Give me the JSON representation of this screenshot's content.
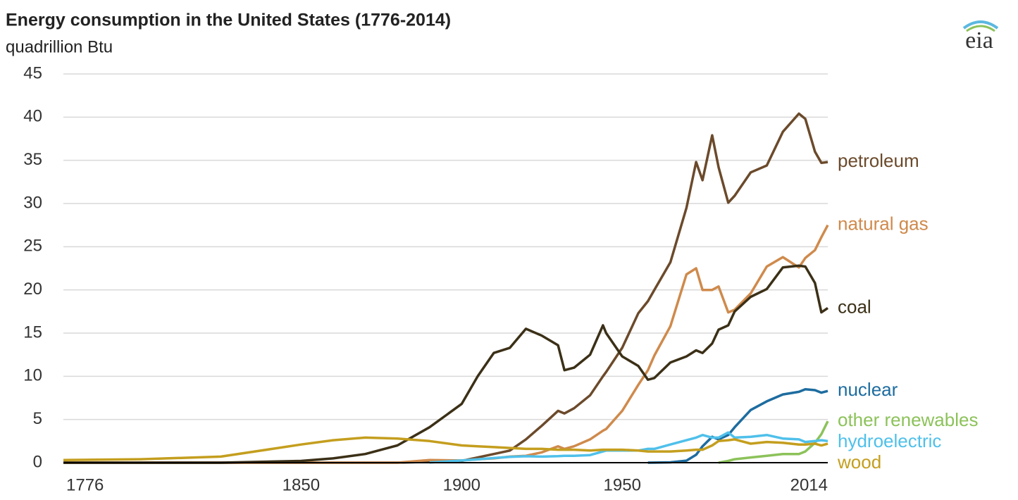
{
  "chart_data": {
    "type": "line",
    "title": "Energy consumption in the United States (1776-2014)",
    "subtitle": "quadrillion Btu",
    "logo": "eia",
    "x": [
      1776,
      1800,
      1825,
      1850,
      1860,
      1870,
      1880,
      1890,
      1900,
      1905,
      1910,
      1915,
      1920,
      1925,
      1930,
      1932,
      1935,
      1940,
      1944,
      1945,
      1950,
      1955,
      1958,
      1960,
      1965,
      1970,
      1973,
      1975,
      1978,
      1980,
      1983,
      1985,
      1990,
      1995,
      2000,
      2005,
      2007,
      2010,
      2012,
      2014
    ],
    "xlim": [
      1776,
      2014
    ],
    "xticks": [
      1776,
      1850,
      1900,
      1950,
      2014
    ],
    "ylim": [
      0,
      45
    ],
    "yticks": [
      0,
      5,
      10,
      15,
      20,
      25,
      30,
      35,
      40,
      45
    ],
    "grid": true,
    "series": [
      {
        "name": "petroleum",
        "color": "#6b4a2b",
        "values": [
          0,
          0,
          0,
          0,
          0,
          0,
          0,
          0.1,
          0.2,
          0.6,
          1.0,
          1.4,
          2.7,
          4.3,
          6.0,
          5.7,
          6.3,
          7.8,
          10.0,
          10.5,
          13.3,
          17.3,
          18.7,
          20.0,
          23.2,
          29.5,
          34.8,
          32.7,
          37.9,
          34.2,
          30.1,
          30.9,
          33.6,
          34.4,
          38.3,
          40.4,
          39.8,
          36.0,
          34.7,
          34.8
        ]
      },
      {
        "name": "natural gas",
        "color": "#cf8a4c",
        "values": [
          0,
          0,
          0,
          0,
          0,
          0,
          0,
          0.3,
          0.25,
          0.4,
          0.5,
          0.7,
          0.8,
          1.2,
          1.9,
          1.6,
          1.9,
          2.7,
          3.7,
          3.9,
          6.0,
          9.0,
          10.7,
          12.4,
          15.8,
          21.8,
          22.5,
          20.0,
          20.0,
          20.4,
          17.4,
          17.7,
          19.6,
          22.7,
          23.8,
          22.6,
          23.7,
          24.6,
          26.1,
          27.5
        ]
      },
      {
        "name": "coal",
        "color": "#3b3017",
        "values": [
          0,
          0,
          0,
          0.2,
          0.5,
          1.0,
          2.0,
          4.1,
          6.8,
          10.0,
          12.7,
          13.3,
          15.5,
          14.7,
          13.6,
          10.7,
          11.0,
          12.5,
          15.9,
          15.0,
          12.3,
          11.2,
          9.6,
          9.8,
          11.6,
          12.3,
          13.0,
          12.7,
          13.8,
          15.4,
          15.9,
          17.5,
          19.2,
          20.1,
          22.6,
          22.8,
          22.7,
          20.8,
          17.4,
          17.9
        ]
      },
      {
        "name": "nuclear",
        "color": "#1d6c9f",
        "values": [
          null,
          null,
          null,
          null,
          null,
          null,
          null,
          null,
          null,
          null,
          null,
          null,
          null,
          null,
          null,
          null,
          null,
          null,
          null,
          null,
          null,
          null,
          0,
          0.01,
          0.04,
          0.24,
          0.91,
          1.9,
          3.0,
          2.7,
          3.2,
          4.1,
          6.1,
          7.1,
          7.9,
          8.2,
          8.5,
          8.4,
          8.1,
          8.3
        ]
      },
      {
        "name": "other renewables",
        "color": "#8cc25a",
        "values": [
          null,
          null,
          null,
          null,
          null,
          null,
          null,
          null,
          null,
          null,
          null,
          null,
          null,
          null,
          null,
          null,
          null,
          null,
          null,
          null,
          null,
          null,
          null,
          null,
          null,
          null,
          null,
          null,
          null,
          0,
          0.2,
          0.4,
          0.6,
          0.8,
          1.0,
          1.0,
          1.3,
          2.3,
          3.3,
          4.8
        ]
      },
      {
        "name": "hydroelectric",
        "color": "#4fc0ea",
        "values": [
          null,
          null,
          null,
          null,
          null,
          null,
          null,
          0.02,
          0.25,
          0.38,
          0.54,
          0.67,
          0.74,
          0.7,
          0.76,
          0.8,
          0.8,
          0.88,
          1.3,
          1.4,
          1.4,
          1.4,
          1.6,
          1.6,
          2.1,
          2.6,
          2.9,
          3.2,
          2.9,
          2.9,
          3.5,
          2.9,
          3.0,
          3.2,
          2.8,
          2.7,
          2.4,
          2.5,
          2.6,
          2.5
        ]
      },
      {
        "name": "wood",
        "color": "#c49e1e",
        "values": [
          0.3,
          0.4,
          0.7,
          2.1,
          2.6,
          2.9,
          2.8,
          2.5,
          2.0,
          1.9,
          1.8,
          1.7,
          1.6,
          1.6,
          1.5,
          1.5,
          1.5,
          1.4,
          1.5,
          1.5,
          1.5,
          1.4,
          1.3,
          1.3,
          1.3,
          1.4,
          1.5,
          1.5,
          2.0,
          2.5,
          2.6,
          2.7,
          2.2,
          2.4,
          2.3,
          2.1,
          2.1,
          2.2,
          2.0,
          2.2
        ]
      }
    ]
  }
}
